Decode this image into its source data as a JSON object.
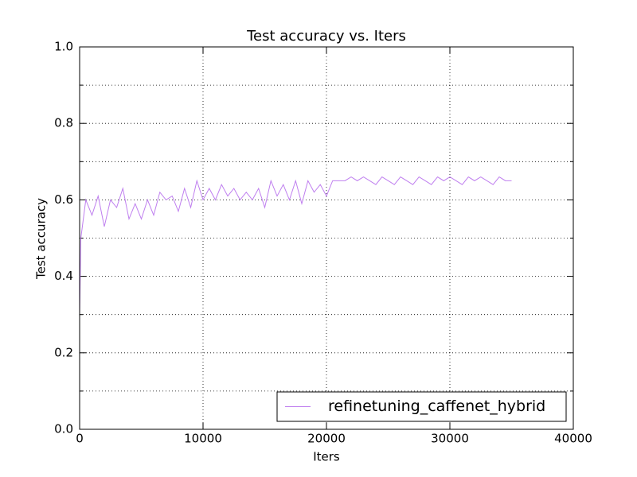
{
  "chart_data": {
    "type": "line",
    "title": "Test accuracy  vs. Iters",
    "x_label": "Iters",
    "y_label": "Test accuracy",
    "x": [
      0,
      100,
      500,
      1000,
      1500,
      2000,
      2500,
      3000,
      3500,
      4000,
      4500,
      5000,
      5500,
      6000,
      6500,
      7000,
      7500,
      8000,
      8500,
      9000,
      9500,
      10000,
      10500,
      11000,
      11500,
      12000,
      12500,
      13000,
      13500,
      14000,
      14500,
      15000,
      15500,
      16000,
      16500,
      17000,
      17500,
      18000,
      18500,
      19000,
      19500,
      20000,
      20500,
      21000,
      21500,
      22000,
      22500,
      23000,
      23500,
      24000,
      24500,
      25000,
      25500,
      26000,
      26500,
      27000,
      27500,
      28000,
      28500,
      29000,
      29500,
      30000,
      30500,
      31000,
      31500,
      32000,
      32500,
      33000,
      33500,
      34000,
      34500,
      35000
    ],
    "series": [
      {
        "name": "refinetuning_caffenet_hybrid",
        "color": "#bf7fef",
        "values": [
          0.3,
          0.5,
          0.6,
          0.56,
          0.61,
          0.53,
          0.6,
          0.58,
          0.63,
          0.55,
          0.59,
          0.55,
          0.6,
          0.56,
          0.62,
          0.6,
          0.61,
          0.57,
          0.63,
          0.58,
          0.65,
          0.6,
          0.63,
          0.6,
          0.64,
          0.61,
          0.63,
          0.6,
          0.62,
          0.6,
          0.63,
          0.58,
          0.65,
          0.61,
          0.64,
          0.6,
          0.65,
          0.59,
          0.65,
          0.62,
          0.64,
          0.61,
          0.65,
          0.65,
          0.65,
          0.66,
          0.65,
          0.66,
          0.65,
          0.64,
          0.66,
          0.65,
          0.64,
          0.66,
          0.65,
          0.64,
          0.66,
          0.65,
          0.64,
          0.66,
          0.65,
          0.66,
          0.65,
          0.64,
          0.66,
          0.65,
          0.66,
          0.65,
          0.64,
          0.66,
          0.65,
          0.65
        ]
      }
    ],
    "xlim": [
      0,
      40000
    ],
    "xticks": [
      0,
      10000,
      20000,
      30000,
      40000
    ],
    "ylim": [
      0,
      1
    ],
    "yticks": [
      {
        "value": 0,
        "label": "0.0"
      },
      {
        "value": 0.2,
        "label": "0.2"
      },
      {
        "value": 0.4,
        "label": "0.4"
      },
      {
        "value": 0.6,
        "label": "0.6"
      },
      {
        "value": 0.8,
        "label": "0.8"
      },
      {
        "value": 1,
        "label": "1.0"
      }
    ],
    "minor_yticks": [
      0.1,
      0.3,
      0.5,
      0.7,
      0.9
    ],
    "grid": true,
    "legend": "lower right"
  }
}
